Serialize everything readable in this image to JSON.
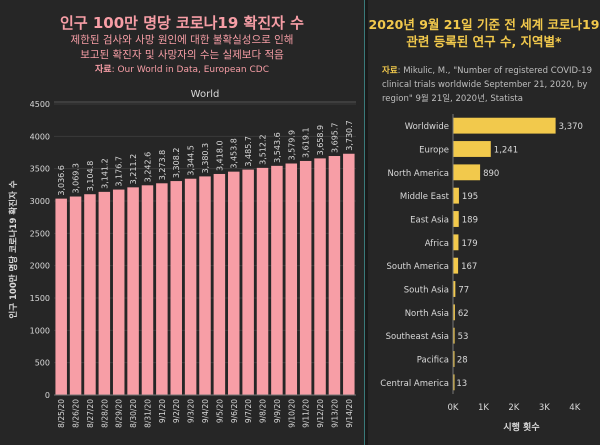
{
  "left": {
    "title": "인구 100만 명당 코로나19 확진자 수",
    "note_line1": "제한된 검사와 사망 원인에 대한 불확실성으로 인해",
    "note_line2": "보고된 확진자 및 사망자의 수는 실제보다 적음",
    "source_label": "자료",
    "source_text": ": Our World in Data, European CDC"
  },
  "right": {
    "title_line1": "2020년 9월 21일 기준 전 세계 코로나19",
    "title_line2": "관련 등록된 연구 수, 지역별*",
    "source_label": "자료",
    "source_text": ": Mikulic, M., \"Number of registered COVID-19 clinical trials worldwide September 21, 2020, by region\" 9월 21일, 2020년, Statista"
  },
  "chart_data": [
    {
      "type": "bar",
      "title": "인구 100만 명당 코로나19 확진자 수",
      "panel_header": "World",
      "ylabel": "인구 100만 명당 코로나19 확진자 수",
      "ylim": [
        0,
        4500
      ],
      "yticks": [
        0,
        500,
        1000,
        1500,
        2000,
        2500,
        3000,
        3500,
        4000,
        4500
      ],
      "grid": true,
      "colors": {
        "bar": "#f79ea6",
        "text": "#d9d9d9",
        "grid": "#3a3a3a"
      },
      "categories": [
        "8/25/20",
        "8/26/20",
        "8/27/20",
        "8/28/20",
        "8/29/20",
        "8/30/20",
        "8/31/20",
        "9/1/20",
        "9/2/20",
        "9/3/20",
        "9/4/20",
        "9/5/20",
        "9/6/20",
        "9/7/20",
        "9/8/20",
        "9/9/20",
        "9/10/20",
        "9/11/20",
        "9/12/20",
        "9/13/20",
        "9/14/20"
      ],
      "values": [
        3036.6,
        3069.3,
        3104.8,
        3141.2,
        3176.7,
        3211.2,
        3242.6,
        3273.8,
        3308.2,
        3344.5,
        3380.3,
        3418.0,
        3453.8,
        3485.7,
        3512.2,
        3543.6,
        3579.9,
        3619.1,
        3658.9,
        3695.7,
        3730.7
      ],
      "labels": [
        "3,036.6",
        "3,069.3",
        "3,104.8",
        "3,141.2",
        "3,176.7",
        "3,211.2",
        "3,242.6",
        "3,273.8",
        "3,308.2",
        "3,344.5",
        "3,380.3",
        "3,418.0",
        "3,453.8",
        "3,485.7",
        "3,512.2",
        "3,543.6",
        "3,579.9",
        "3,619.1",
        "3,658.9",
        "3,695.7",
        "3,730.7"
      ]
    },
    {
      "type": "bar",
      "orientation": "horizontal",
      "title": "2020년 9월 21일 기준 전 세계 코로나19 관련 등록된 연구 수, 지역별*",
      "xlabel": "시행 횟수",
      "xlim": [
        0,
        4500
      ],
      "xticks": [
        0,
        1000,
        2000,
        3000,
        4000
      ],
      "xtick_labels": [
        "0K",
        "1K",
        "2K",
        "3K",
        "4K"
      ],
      "colors": {
        "bar": "#f2c94c",
        "text": "#d9d9d9"
      },
      "categories": [
        "Worldwide",
        "Europe",
        "North America",
        "Middle East",
        "East Asia",
        "Africa",
        "South America",
        "South Asia",
        "North Asia",
        "Southeast Asia",
        "Pacifica",
        "Central America"
      ],
      "values": [
        3370,
        1241,
        890,
        195,
        189,
        179,
        167,
        77,
        62,
        53,
        28,
        13
      ],
      "labels": [
        "3,370",
        "1,241",
        "890",
        "195",
        "189",
        "179",
        "167",
        "77",
        "62",
        "53",
        "28",
        "13"
      ]
    }
  ]
}
